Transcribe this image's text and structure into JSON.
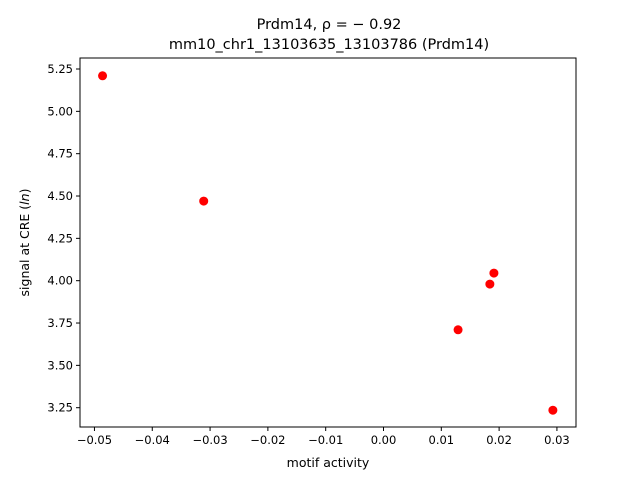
{
  "chart_data": {
    "type": "scatter",
    "title_line1": "Prdm14, ρ = − 0.92",
    "title_line2": "mm10_chr1_13103635_13103786 (Prdm14)",
    "xlabel": "motif activity",
    "ylabel_prefix": "signal at CRE (",
    "ylabel_italic": "ln",
    "ylabel_suffix": ")",
    "xlim": [
      -0.0525,
      0.0333
    ],
    "ylim": [
      3.136,
      5.315
    ],
    "xticks": [
      -0.05,
      -0.04,
      -0.03,
      -0.02,
      -0.01,
      0.0,
      0.01,
      0.02,
      0.03
    ],
    "xtick_labels": [
      "−0.05",
      "−0.04",
      "−0.03",
      "−0.02",
      "−0.01",
      "0.00",
      "0.01",
      "0.02",
      "0.03"
    ],
    "yticks": [
      3.25,
      3.5,
      3.75,
      4.0,
      4.25,
      4.5,
      4.75,
      5.0,
      5.25
    ],
    "ytick_labels": [
      "3.25",
      "3.50",
      "3.75",
      "4.00",
      "4.25",
      "4.50",
      "4.75",
      "5.00",
      "5.25"
    ],
    "grid": false,
    "marker_color": "#ff0000",
    "points": [
      {
        "x": -0.0486,
        "y": 5.21
      },
      {
        "x": -0.0311,
        "y": 4.47
      },
      {
        "x": 0.0129,
        "y": 3.71
      },
      {
        "x": 0.0184,
        "y": 3.98
      },
      {
        "x": 0.0191,
        "y": 4.045
      },
      {
        "x": 0.0293,
        "y": 3.235
      }
    ]
  }
}
